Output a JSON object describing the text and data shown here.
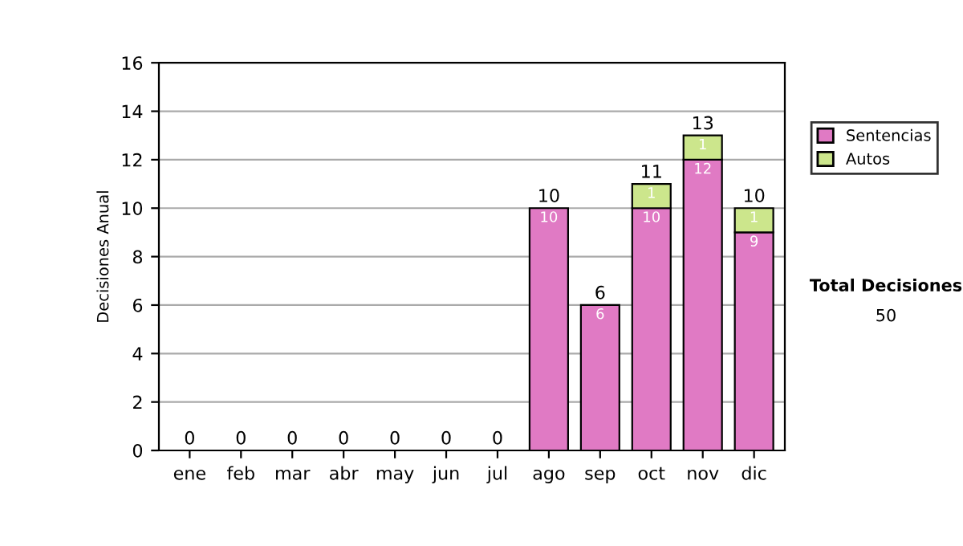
{
  "chart_data": {
    "type": "bar",
    "stacked": true,
    "ylabel": "Decisiones Anual",
    "categories": [
      "ene",
      "feb",
      "mar",
      "abr",
      "may",
      "jun",
      "jul",
      "ago",
      "sep",
      "oct",
      "nov",
      "dic"
    ],
    "series": [
      {
        "name": "Sentencias",
        "color": "#e07ac4",
        "values": [
          0,
          0,
          0,
          0,
          0,
          0,
          0,
          10,
          6,
          10,
          12,
          9
        ],
        "value_labels": [
          null,
          null,
          null,
          null,
          null,
          null,
          null,
          "10",
          "6",
          "10",
          "12",
          "9"
        ]
      },
      {
        "name": "Autos",
        "color": "#cce68c",
        "values": [
          0,
          0,
          0,
          0,
          0,
          0,
          0,
          0,
          0,
          1,
          1,
          1
        ],
        "value_labels": [
          null,
          null,
          null,
          null,
          null,
          null,
          null,
          null,
          null,
          "1",
          "1",
          "1"
        ]
      }
    ],
    "totals": [
      "0",
      "0",
      "0",
      "0",
      "0",
      "0",
      "0",
      "10",
      "6",
      "11",
      "13",
      "10"
    ],
    "ylim": [
      0,
      16
    ],
    "yticks": [
      0,
      2,
      4,
      6,
      8,
      10,
      12,
      14,
      16
    ],
    "grid": "y",
    "legend": "right",
    "annotations": [
      "Total Decisiones",
      "50"
    ]
  }
}
